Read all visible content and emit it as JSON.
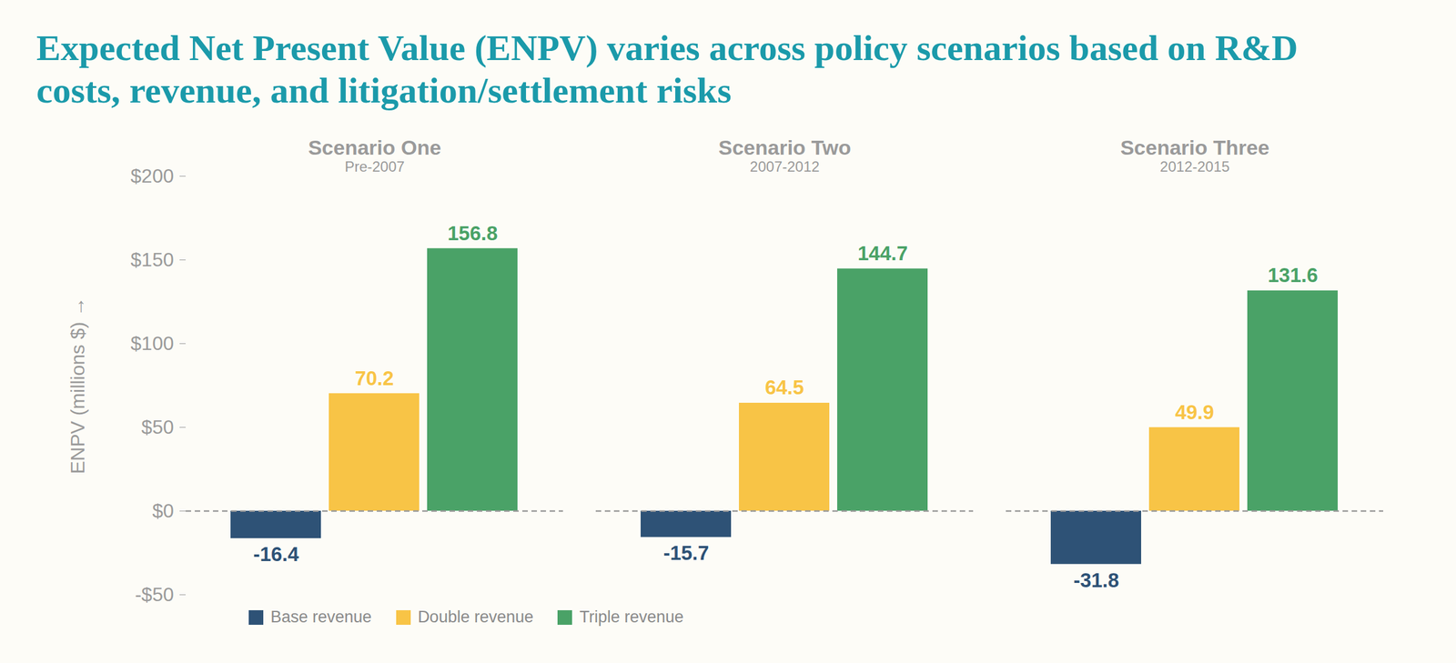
{
  "chart_data": {
    "type": "bar",
    "title": "Expected Net Present Value (ENPV) varies across policy scenarios based on R&D costs, revenue, and litigation/settlement risks",
    "y_label": "ENPV (millions $)",
    "categories": [
      "Scenario One",
      "Scenario Two",
      "Scenario Three"
    ],
    "category_subtitles": [
      "Pre-2007",
      "2007-2012",
      "2012-2015"
    ],
    "series": [
      {
        "name": "Base revenue",
        "color": "#2e5276",
        "values": [
          -16.4,
          -15.7,
          -31.8
        ]
      },
      {
        "name": "Double revenue",
        "color": "#f8c446",
        "values": [
          70.2,
          64.5,
          49.9
        ]
      },
      {
        "name": "Triple revenue",
        "color": "#4aa267",
        "values": [
          156.8,
          144.7,
          131.6
        ]
      }
    ],
    "ylim": [
      -50,
      200
    ],
    "yticks": [
      {
        "value": -50,
        "label": "-$50"
      },
      {
        "value": 0,
        "label": "$0"
      },
      {
        "value": 50,
        "label": "$50"
      },
      {
        "value": 100,
        "label": "$100"
      },
      {
        "value": 150,
        "label": "$150"
      },
      {
        "value": 200,
        "label": "$200"
      }
    ],
    "grid": false,
    "legend": "bottom",
    "data_labels": true
  }
}
